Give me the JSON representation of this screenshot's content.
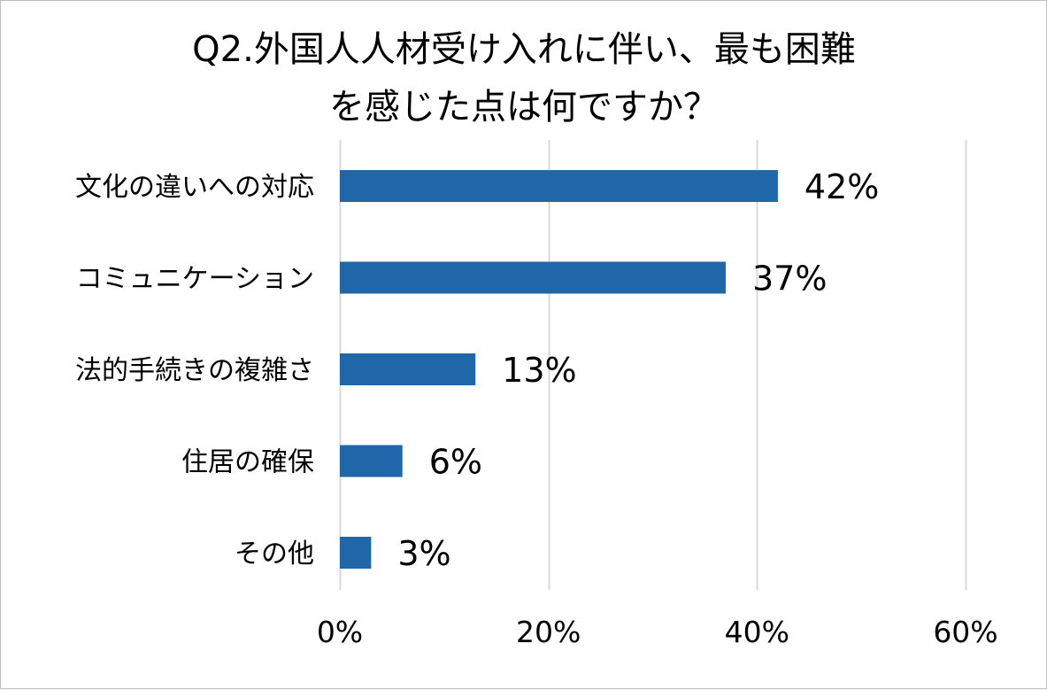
{
  "chart_data": {
    "type": "bar",
    "orientation": "horizontal",
    "title_lines": [
      "Q2.外国人人材受け入れに伴い、最も困難",
      "を感じた点は何ですか？"
    ],
    "categories": [
      "文化の違いへの対応",
      "コミュニケーション",
      "法的手続きの複雑さ",
      "住居の確保",
      "その他"
    ],
    "values": [
      42,
      37,
      13,
      6,
      3
    ],
    "data_labels": [
      "42%",
      "37%",
      "13%",
      "6%",
      "3%"
    ],
    "xlim": [
      0,
      60
    ],
    "xticks": [
      0,
      20,
      40,
      60
    ],
    "xtick_labels": [
      "0%",
      "20%",
      "40%",
      "60%"
    ],
    "grid": true,
    "legend": "none",
    "colors": {
      "bar": "#1f67a8",
      "grid": "#d9d9d9",
      "border": "#bfbfbf",
      "text": "#000000"
    }
  }
}
